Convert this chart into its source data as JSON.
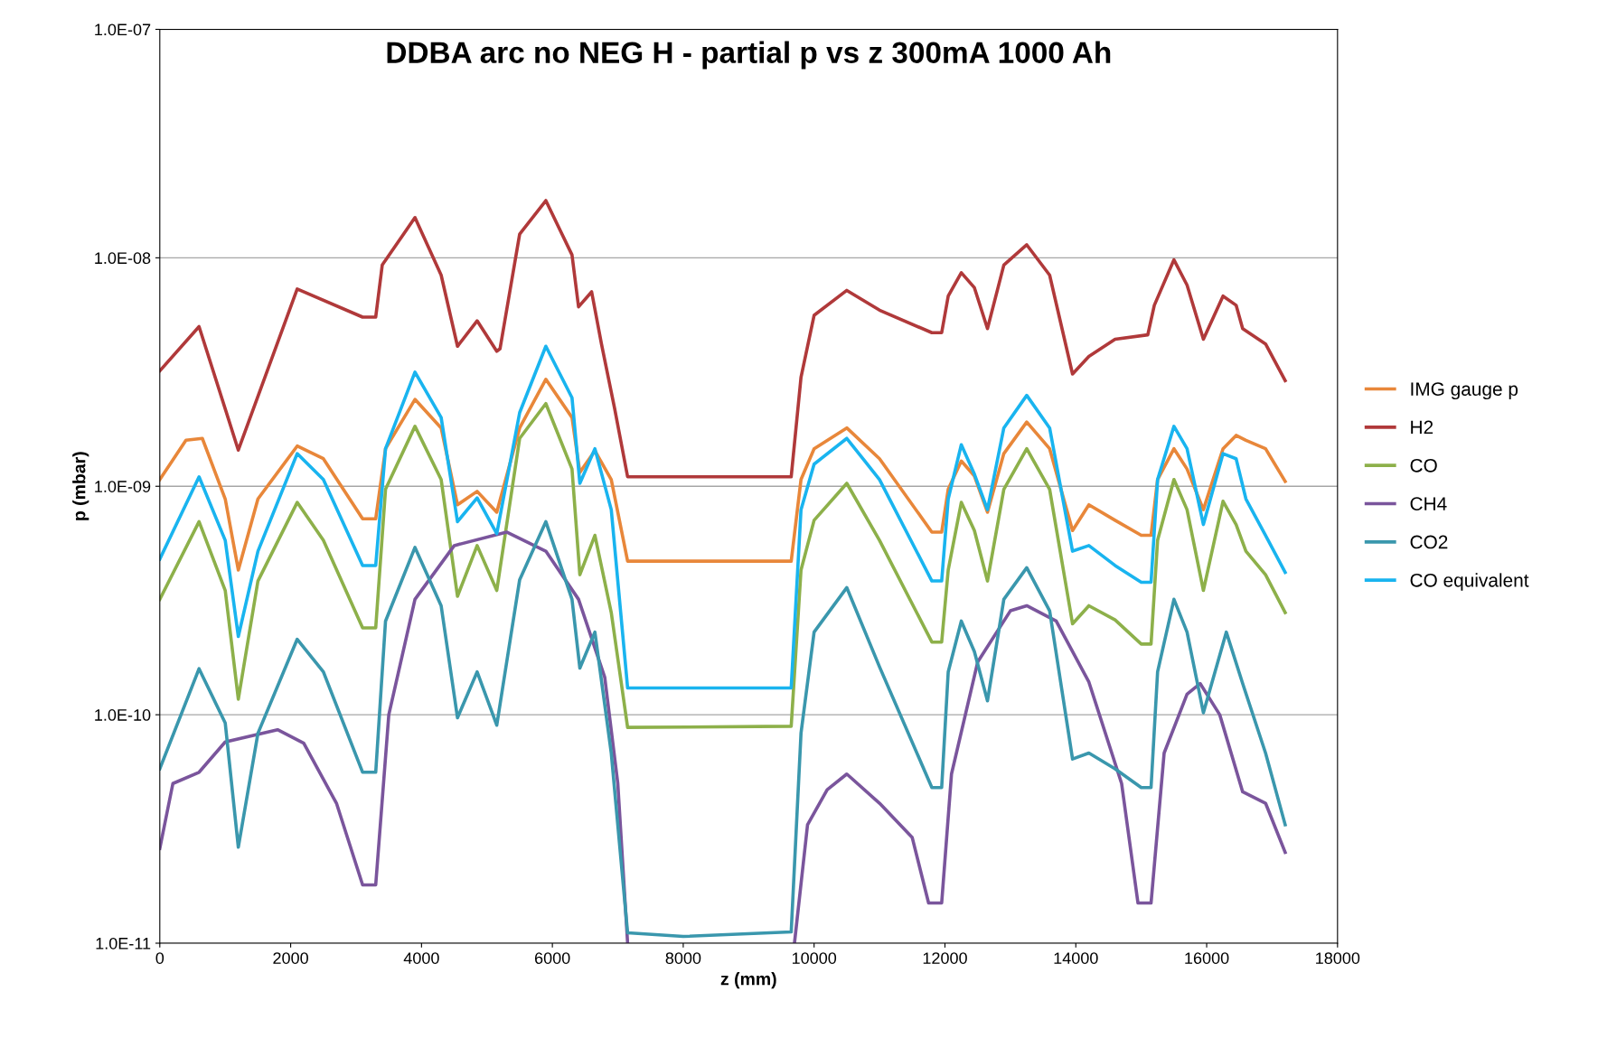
{
  "chart_data": {
    "type": "line",
    "title": "DDBA arc no NEG H - partial p vs z 300mA 1000 Ah",
    "xlabel": "z (mm)",
    "ylabel": "p (mbar)",
    "log": "y",
    "grid": "y",
    "legend": "right",
    "marker": "none",
    "line_style": "solid",
    "xlim": [
      0,
      18000
    ],
    "xticks": [
      0,
      2000,
      4000,
      6000,
      8000,
      10000,
      12000,
      14000,
      16000,
      18000
    ],
    "ylim": [
      1e-11,
      1e-07
    ],
    "yticks": [
      {
        "value": 1e-11,
        "label": "1.0E-11"
      },
      {
        "value": 1e-10,
        "label": "1.0E-10"
      },
      {
        "value": 1e-09,
        "label": "1.0E-09"
      },
      {
        "value": 1e-08,
        "label": "1.0E-08"
      },
      {
        "value": 1e-07,
        "label": "1.0E-07"
      }
    ],
    "series": [
      {
        "name": "IMG gauge p",
        "color": "#e8873a",
        "x": [
          0,
          400,
          650,
          1000,
          1200,
          1500,
          2100,
          2500,
          3100,
          3300,
          3450,
          3900,
          4300,
          4550,
          4850,
          5150,
          5500,
          5900,
          6300,
          6420,
          6650,
          6900,
          7150,
          9650,
          9800,
          10000,
          10500,
          11000,
          11800,
          11950,
          12050,
          12250,
          12450,
          12650,
          12900,
          13250,
          13600,
          13950,
          14200,
          14600,
          15000,
          15150,
          15250,
          15500,
          15700,
          15950,
          16250,
          16450,
          16600,
          16900,
          17200
        ],
        "values": [
          1.07e-09,
          1.59e-09,
          1.62e-09,
          8.8e-10,
          4.3e-10,
          8.8e-10,
          1.5e-09,
          1.32e-09,
          7.2e-10,
          7.2e-10,
          1.46e-09,
          2.4e-09,
          1.8e-09,
          8.3e-10,
          9.5e-10,
          7.7e-10,
          1.8e-09,
          2.94e-09,
          2e-09,
          1.15e-09,
          1.43e-09,
          1.07e-09,
          4.7e-10,
          4.7e-10,
          1.07e-09,
          1.46e-09,
          1.8e-09,
          1.32e-09,
          6.3e-10,
          6.3e-10,
          9.7e-10,
          1.29e-09,
          1.11e-09,
          7.7e-10,
          1.39e-09,
          1.91e-09,
          1.46e-09,
          6.4e-10,
          8.3e-10,
          7.1e-10,
          6.1e-10,
          6.1e-10,
          1.07e-09,
          1.46e-09,
          1.19e-09,
          7.9e-10,
          1.46e-09,
          1.67e-09,
          1.59e-09,
          1.46e-09,
          1.05e-09
        ]
      },
      {
        "name": "H2",
        "color": "#b0393a",
        "x": [
          0,
          600,
          1200,
          2100,
          3100,
          3300,
          3400,
          3900,
          4300,
          4550,
          4850,
          5150,
          5200,
          5500,
          5900,
          6300,
          6400,
          6600,
          6750,
          6950,
          7150,
          9650,
          9800,
          10000,
          10500,
          11000,
          11800,
          11950,
          12050,
          12250,
          12450,
          12650,
          12900,
          13250,
          13600,
          13950,
          14200,
          14600,
          15100,
          15200,
          15500,
          15700,
          15950,
          16250,
          16450,
          16550,
          16900,
          17200
        ],
        "values": [
          3.2e-09,
          5e-09,
          1.44e-09,
          7.3e-09,
          5.5e-09,
          5.5e-09,
          9.3e-09,
          1.5e-08,
          8.4e-09,
          4.1e-09,
          5.3e-09,
          3.9e-09,
          4e-09,
          1.27e-08,
          1.78e-08,
          1.03e-08,
          6.1e-09,
          7.1e-09,
          4.2e-09,
          2.2e-09,
          1.1e-09,
          1.1e-09,
          3e-09,
          5.6e-09,
          7.2e-09,
          5.9e-09,
          4.7e-09,
          4.7e-09,
          6.8e-09,
          8.6e-09,
          7.4e-09,
          4.9e-09,
          9.3e-09,
          1.14e-08,
          8.4e-09,
          3.1e-09,
          3.7e-09,
          4.4e-09,
          4.6e-09,
          6.2e-09,
          9.8e-09,
          7.6e-09,
          4.4e-09,
          6.8e-09,
          6.2e-09,
          4.9e-09,
          4.2e-09,
          2.9e-09
        ]
      },
      {
        "name": "CO",
        "color": "#8db04a",
        "x": [
          0,
          600,
          1000,
          1200,
          1500,
          2100,
          2500,
          3100,
          3300,
          3450,
          3900,
          4300,
          4550,
          4850,
          5150,
          5500,
          5900,
          6300,
          6420,
          6650,
          6900,
          7150,
          9650,
          9800,
          10000,
          10500,
          11000,
          11800,
          11950,
          12050,
          12250,
          12450,
          12650,
          12900,
          13250,
          13600,
          13950,
          14200,
          14600,
          15000,
          15150,
          15250,
          15500,
          15700,
          15950,
          16250,
          16450,
          16600,
          16900,
          17200
        ],
        "values": [
          3.2e-10,
          7e-10,
          3.5e-10,
          1.17e-10,
          3.85e-10,
          8.5e-10,
          5.8e-10,
          2.4e-10,
          2.4e-10,
          9.7e-10,
          1.83e-09,
          1.07e-09,
          3.3e-10,
          5.5e-10,
          3.5e-10,
          1.62e-09,
          2.3e-09,
          1.19e-09,
          4.1e-10,
          6.1e-10,
          2.8e-10,
          8.8e-11,
          8.9e-11,
          4.3e-10,
          7.1e-10,
          1.03e-09,
          5.8e-10,
          2.08e-10,
          2.08e-10,
          4.3e-10,
          8.5e-10,
          6.4e-10,
          3.85e-10,
          9.7e-10,
          1.46e-09,
          9.7e-10,
          2.5e-10,
          3e-10,
          2.6e-10,
          2.04e-10,
          2.04e-10,
          5.8e-10,
          1.07e-09,
          7.9e-10,
          3.5e-10,
          8.6e-10,
          6.8e-10,
          5.2e-10,
          4.1e-10,
          2.8e-10
        ]
      },
      {
        "name": "CH4",
        "color": "#7a559c",
        "x": [
          0,
          200,
          600,
          1000,
          1800,
          2200,
          2700,
          3100,
          3300,
          3500,
          3900,
          4500,
          5300,
          5900,
          6400,
          6800,
          7000,
          7150,
          8400,
          9700,
          9900,
          10200,
          10500,
          11000,
          11500,
          11750,
          11950,
          12100,
          12500,
          13000,
          13250,
          13700,
          14200,
          14700,
          14950,
          15150,
          15350,
          15700,
          15900,
          16200,
          16550,
          16900,
          17200
        ],
        "values": [
          2.6e-11,
          5e-11,
          5.6e-11,
          7.6e-11,
          8.6e-11,
          7.5e-11,
          4.1e-11,
          1.8e-11,
          1.8e-11,
          1e-10,
          3.2e-10,
          5.5e-10,
          6.3e-10,
          5.2e-10,
          3.2e-10,
          1.46e-10,
          5e-11,
          1e-11,
          null,
          1e-11,
          3.3e-11,
          4.7e-11,
          5.5e-11,
          4.1e-11,
          2.9e-11,
          1.5e-11,
          1.5e-11,
          5.5e-11,
          1.7e-10,
          2.85e-10,
          3e-10,
          2.57e-10,
          1.39e-10,
          5e-11,
          1.5e-11,
          1.5e-11,
          6.8e-11,
          1.23e-10,
          1.37e-10,
          1e-10,
          4.6e-11,
          4.1e-11,
          2.5e-11
        ]
      },
      {
        "name": "CO2",
        "color": "#3a97ad",
        "x": [
          0,
          600,
          1000,
          1200,
          1500,
          2100,
          2500,
          3100,
          3300,
          3450,
          3900,
          4300,
          4550,
          4850,
          5150,
          5500,
          5900,
          6300,
          6420,
          6650,
          6900,
          7150,
          8000,
          9650,
          9800,
          10000,
          10500,
          11000,
          11800,
          11950,
          12050,
          12250,
          12450,
          12650,
          12900,
          13250,
          13600,
          13950,
          14200,
          14600,
          15000,
          15150,
          15250,
          15500,
          15700,
          15950,
          16300,
          16550,
          16900,
          17200
        ],
        "values": [
          5.8e-11,
          1.59e-10,
          9.2e-11,
          2.63e-11,
          8.3e-11,
          2.14e-10,
          1.54e-10,
          5.6e-11,
          5.6e-11,
          2.57e-10,
          5.4e-10,
          3e-10,
          9.7e-11,
          1.54e-10,
          9e-11,
          3.9e-10,
          7e-10,
          3.2e-10,
          1.6e-10,
          2.3e-10,
          6.8e-11,
          1.11e-11,
          1.07e-11,
          1.12e-11,
          8.3e-11,
          2.3e-10,
          3.6e-10,
          1.62e-10,
          4.8e-11,
          4.8e-11,
          1.54e-10,
          2.57e-10,
          1.89e-10,
          1.15e-10,
          3.2e-10,
          4.4e-10,
          2.85e-10,
          6.4e-11,
          6.8e-11,
          5.8e-11,
          4.8e-11,
          4.8e-11,
          1.54e-10,
          3.2e-10,
          2.3e-10,
          1.02e-10,
          2.3e-10,
          1.37e-10,
          6.8e-11,
          3.3e-11
        ]
      },
      {
        "name": "CO equivalent",
        "color": "#19b4ef",
        "x": [
          0,
          600,
          1000,
          1200,
          1500,
          2100,
          2500,
          3100,
          3300,
          3450,
          3900,
          4300,
          4550,
          4850,
          5150,
          5500,
          5900,
          6300,
          6420,
          6650,
          6900,
          7150,
          9650,
          9800,
          10000,
          10500,
          11000,
          11800,
          11950,
          12050,
          12250,
          12450,
          12650,
          12900,
          13250,
          13600,
          13950,
          14200,
          14600,
          15000,
          15150,
          15250,
          15500,
          15700,
          15950,
          16250,
          16450,
          16600,
          16900,
          17200
        ],
        "values": [
          4.8e-10,
          1.1e-09,
          5.8e-10,
          2.2e-10,
          5.2e-10,
          1.39e-09,
          1.07e-09,
          4.5e-10,
          4.5e-10,
          1.46e-09,
          3.16e-09,
          2e-09,
          7e-10,
          8.9e-10,
          6.2e-10,
          2.1e-09,
          4.1e-09,
          2.44e-09,
          1.03e-09,
          1.46e-09,
          7.9e-10,
          1.31e-10,
          1.31e-10,
          7.9e-10,
          1.25e-09,
          1.62e-09,
          1.07e-09,
          3.85e-10,
          3.85e-10,
          8.8e-10,
          1.52e-09,
          1.13e-09,
          7.9e-10,
          1.8e-09,
          2.5e-09,
          1.8e-09,
          5.2e-10,
          5.5e-10,
          4.5e-10,
          3.8e-10,
          3.8e-10,
          1.07e-09,
          1.83e-09,
          1.46e-09,
          6.8e-10,
          1.39e-09,
          1.32e-09,
          8.8e-10,
          6.1e-10,
          4.2e-10
        ]
      }
    ]
  }
}
